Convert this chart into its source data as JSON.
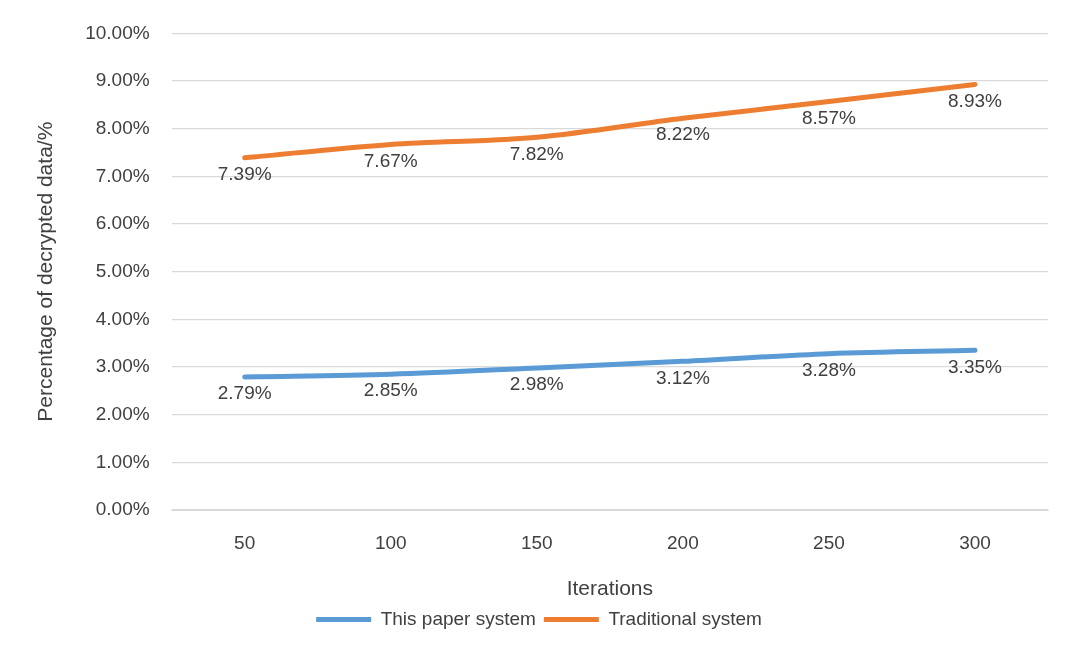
{
  "chart_data": {
    "type": "line",
    "xlabel": "Iterations",
    "ylabel": "Percentage of decrypted data/%",
    "categories": [
      "50",
      "100",
      "150",
      "200",
      "250",
      "300"
    ],
    "series": [
      {
        "name": "This paper system",
        "color": "#5b9bd5",
        "values": [
          2.79,
          2.85,
          2.98,
          3.12,
          3.28,
          3.35
        ],
        "value_labels": [
          "2.79%",
          "2.85%",
          "2.98%",
          "3.12%",
          "3.28%",
          "3.35%"
        ]
      },
      {
        "name": "Traditional system",
        "color": "#ed7d31",
        "values": [
          7.39,
          7.67,
          7.82,
          8.22,
          8.57,
          8.93
        ],
        "value_labels": [
          "7.39%",
          "7.67%",
          "7.82%",
          "8.22%",
          "8.57%",
          "8.93%"
        ]
      }
    ],
    "ylim": [
      0,
      10
    ],
    "yticks": [
      {
        "value": 0,
        "label": "0.00%"
      },
      {
        "value": 1,
        "label": "1.00%"
      },
      {
        "value": 2,
        "label": "2.00%"
      },
      {
        "value": 3,
        "label": "3.00%"
      },
      {
        "value": 4,
        "label": "4.00%"
      },
      {
        "value": 5,
        "label": "5.00%"
      },
      {
        "value": 6,
        "label": "6.00%"
      },
      {
        "value": 7,
        "label": "7.00%"
      },
      {
        "value": 8,
        "label": "8.00%"
      },
      {
        "value": 9,
        "label": "9.00%"
      },
      {
        "value": 10,
        "label": "10.00%"
      }
    ],
    "grid": "y",
    "legend": "bottom",
    "marker": "none",
    "line_style": "solid"
  }
}
